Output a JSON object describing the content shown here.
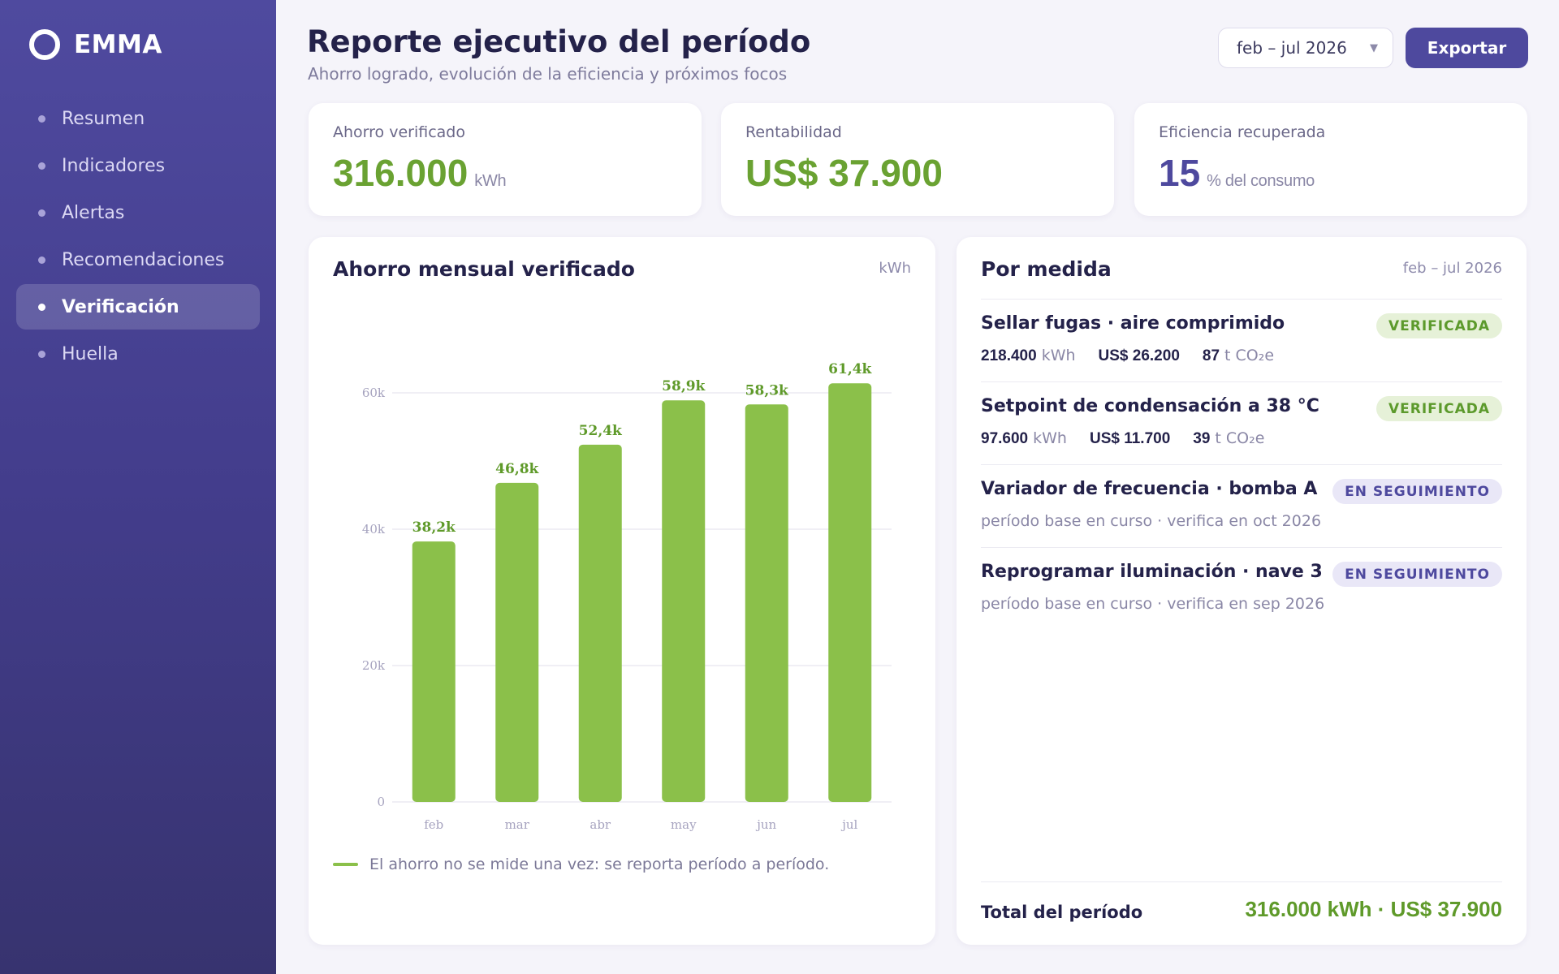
{
  "sidebar": {
    "brand": "EMMA",
    "items": [
      {
        "label": "Resumen",
        "active": false
      },
      {
        "label": "Indicadores",
        "active": false
      },
      {
        "label": "Alertas",
        "active": false
      },
      {
        "label": "Recomendaciones",
        "active": false
      },
      {
        "label": "Verificación",
        "active": true
      },
      {
        "label": "Huella",
        "active": false
      }
    ]
  },
  "header": {
    "title": "Reporte ejecutivo del período",
    "subtitle": "Ahorro logrado, evolución de la eficiencia y próximos focos",
    "period_selected": "feb – jul 2026",
    "export_label": "Exportar"
  },
  "kpis": [
    {
      "label": "Ahorro verificado",
      "value": "316.000",
      "unit": "kWh",
      "color": "#6aa232"
    },
    {
      "label": "Rentabilidad",
      "value": "US$ 37.900",
      "unit": "",
      "color": "#6aa232"
    },
    {
      "label": "Eficiencia recuperada",
      "value": "15",
      "unit": "% del consumo",
      "color": "#4e499e"
    }
  ],
  "chart_card": {
    "title": "Ahorro mensual verificado",
    "unit": "kWh",
    "legend": "El ahorro no se mide una vez: se reporta período a período."
  },
  "chart_data": {
    "type": "bar",
    "title": "Ahorro mensual verificado",
    "xlabel": "",
    "ylabel": "kWh",
    "categories": [
      "feb",
      "mar",
      "abr",
      "may",
      "jun",
      "jul"
    ],
    "values": [
      38200,
      46800,
      52400,
      58900,
      58300,
      61400
    ],
    "value_labels": [
      "38,2k",
      "46,8k",
      "52,4k",
      "58,9k",
      "58,3k",
      "61,4k"
    ],
    "ylim": [
      0,
      60000
    ],
    "yticks": [
      0,
      20000,
      40000,
      60000
    ],
    "ytick_labels": [
      "0",
      "20k",
      "40k",
      "60k"
    ],
    "grid": true,
    "bar_color": "#8bc04a",
    "label_color": "#5f9a2a"
  },
  "measures_card": {
    "title": "Por medida",
    "period": "feb – jul 2026",
    "items": [
      {
        "name": "Sellar fugas · aire comprimido",
        "status": "VERIFICADA",
        "kind": "verified",
        "kwh": "218.400",
        "kwh_unit": "kWh",
        "usd": "US$ 26.200",
        "co2": "87",
        "co2_unit": "t CO₂e",
        "note": ""
      },
      {
        "name": "Setpoint de condensación a 38 °C",
        "status": "VERIFICADA",
        "kind": "verified",
        "kwh": "97.600",
        "kwh_unit": "kWh",
        "usd": "US$ 11.700",
        "co2": "39",
        "co2_unit": "t CO₂e",
        "note": ""
      },
      {
        "name": "Variador de frecuencia · bomba A",
        "status": "EN SEGUIMIENTO",
        "kind": "tracking",
        "note": "período base en curso · verifica en oct 2026"
      },
      {
        "name": "Reprogramar iluminación · nave 3",
        "status": "EN SEGUIMIENTO",
        "kind": "tracking",
        "note": "período base en curso · verifica en sep 2026"
      }
    ],
    "total_label": "Total del período",
    "total_value": "316.000 kWh · US$ 37.900"
  }
}
